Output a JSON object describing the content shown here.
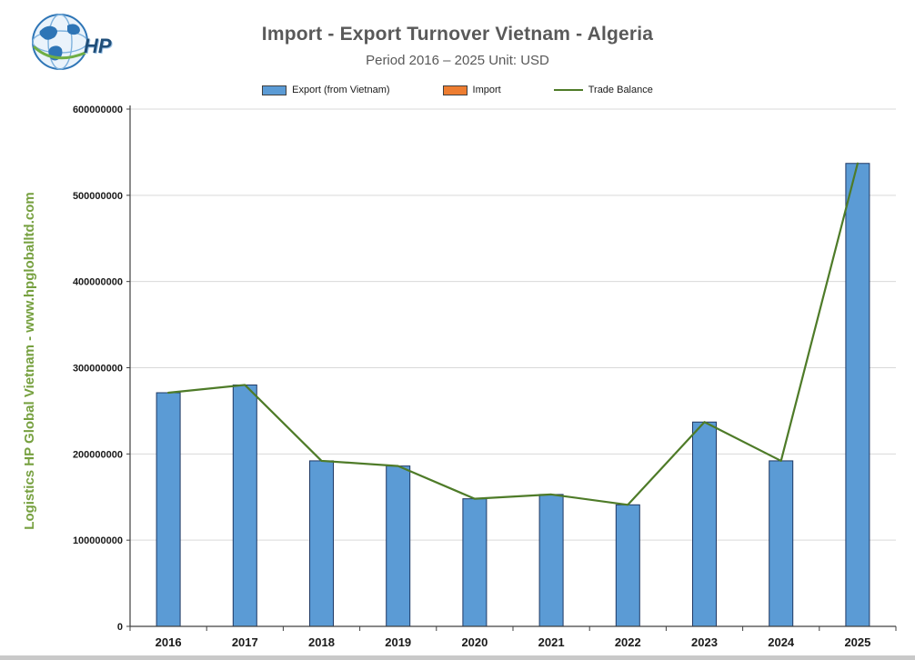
{
  "header": {
    "title": "Import - Export Turnover Vietnam - Algeria",
    "subtitle": "Period 2016 – 2025  Unit: USD"
  },
  "logo": {
    "text": "HP"
  },
  "watermark": "Logistics HP Global Vietnam - www.hpgloballtd.com",
  "legend": {
    "export_label": "Export (from Vietnam)",
    "import_label": "Import",
    "balance_label": "Trade Balance"
  },
  "colors": {
    "export_bar": "#5B9BD5",
    "import_bar": "#ED7D31",
    "balance_line": "#4E7B28",
    "bar_border": "#1f3864",
    "grid": "#d9d9d9",
    "axis": "#404040",
    "tick_text": "#1a1a1a"
  },
  "chart_data": {
    "type": "bar",
    "title": "Import - Export Turnover Vietnam - Algeria",
    "xlabel": "",
    "ylabel": "",
    "categories": [
      "2016",
      "2017",
      "2018",
      "2019",
      "2020",
      "2021",
      "2022",
      "2023",
      "2024",
      "2025"
    ],
    "series": [
      {
        "name": "Export (from Vietnam)",
        "type": "bar",
        "values": [
          271000000,
          280000000,
          192000000,
          186000000,
          148000000,
          153000000,
          141000000,
          237000000,
          192000000,
          537000000
        ]
      },
      {
        "name": "Import",
        "type": "bar",
        "values": [
          0,
          0,
          0,
          0,
          0,
          0,
          0,
          0,
          0,
          0
        ]
      },
      {
        "name": "Trade Balance",
        "type": "line",
        "values": [
          271000000,
          280000000,
          192000000,
          186000000,
          148000000,
          153000000,
          141000000,
          237000000,
          192000000,
          537000000
        ]
      }
    ],
    "ylim": [
      0,
      600000000
    ],
    "ytick_step": 100000000,
    "grid": true,
    "legend_position": "top"
  }
}
